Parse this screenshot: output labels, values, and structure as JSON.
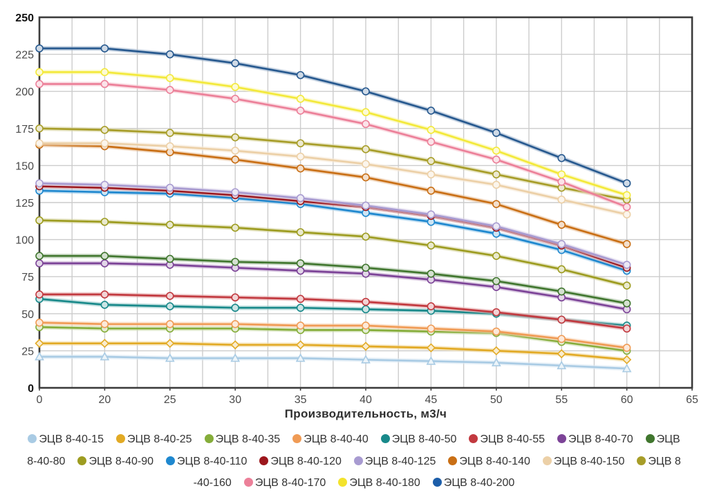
{
  "chart_data": {
    "type": "line",
    "x": [
      0,
      20,
      25,
      30,
      35,
      40,
      45,
      50,
      55,
      60
    ],
    "x_axis_ticks": [
      0,
      20,
      25,
      30,
      35,
      40,
      45,
      50,
      55,
      60,
      65
    ],
    "xlabel": "Производительность, м3/ч",
    "ylabel": "",
    "ylim": [
      0,
      250
    ],
    "y_tick_step": 25,
    "grid": true,
    "legend_position": "bottom",
    "series": [
      {
        "key": "15",
        "name": "ЭЦВ 8-40-15",
        "color": "#a9cbe4",
        "marker": "triangle",
        "values": [
          21,
          21,
          20,
          20,
          20,
          19,
          18,
          17,
          15,
          13
        ]
      },
      {
        "key": "25",
        "name": "ЭЦВ 8-40-25",
        "color": "#e2aa25",
        "marker": "diamond",
        "values": [
          30,
          30,
          30,
          29,
          29,
          28,
          27,
          25,
          23,
          19
        ]
      },
      {
        "key": "35",
        "name": "ЭЦВ 8-40-35",
        "color": "#85ad3a",
        "marker": "circle",
        "values": [
          41,
          40,
          40,
          40,
          39,
          39,
          38,
          37,
          31,
          25
        ]
      },
      {
        "key": "40",
        "name": "ЭЦВ 8-40-40",
        "color": "#f09b55",
        "marker": "circle",
        "values": [
          44,
          43,
          43,
          43,
          42,
          42,
          40,
          38,
          33,
          27
        ]
      },
      {
        "key": "50",
        "name": "ЭЦВ 8-40-50",
        "color": "#18898a",
        "marker": "circle",
        "values": [
          60,
          56,
          55,
          54,
          54,
          53,
          52,
          50,
          46,
          42
        ]
      },
      {
        "key": "55",
        "name": "ЭЦВ 8-40-55",
        "color": "#c2393f",
        "marker": "circle",
        "values": [
          63,
          63,
          62,
          61,
          60,
          58,
          55,
          51,
          46,
          40
        ]
      },
      {
        "key": "70",
        "name": "ЭЦВ 8-40-70",
        "color": "#7c4397",
        "marker": "circle",
        "values": [
          84,
          84,
          83,
          81,
          79,
          77,
          73,
          68,
          61,
          53
        ]
      },
      {
        "key": "80",
        "name": "ЭЦВ 8-40-80",
        "color": "#40762e",
        "marker": "circle",
        "values": [
          89,
          89,
          87,
          85,
          84,
          81,
          77,
          72,
          65,
          57
        ]
      },
      {
        "key": "90",
        "name": "ЭЦВ 8-40-90",
        "color": "#9d9c20",
        "marker": "circle",
        "values": [
          113,
          112,
          110,
          108,
          105,
          102,
          96,
          89,
          80,
          69
        ]
      },
      {
        "key": "110",
        "name": "ЭЦВ 8-40-110",
        "color": "#1f88cf",
        "marker": "circle",
        "values": [
          133,
          132,
          131,
          128,
          124,
          118,
          112,
          104,
          93,
          79
        ]
      },
      {
        "key": "120",
        "name": "ЭЦВ 8-40-120",
        "color": "#9c161c",
        "marker": "circle",
        "values": [
          136,
          135,
          133,
          130,
          126,
          122,
          116,
          108,
          96,
          81
        ]
      },
      {
        "key": "125",
        "name": "ЭЦВ 8-40-125",
        "color": "#a89bd1",
        "marker": "circle",
        "values": [
          138,
          137,
          135,
          132,
          128,
          123,
          117,
          109,
          97,
          83
        ]
      },
      {
        "key": "140",
        "name": "ЭЦВ 8-40-140",
        "color": "#c96f15",
        "marker": "circle",
        "values": [
          164,
          163,
          159,
          154,
          148,
          142,
          133,
          124,
          110,
          97
        ]
      },
      {
        "key": "150",
        "name": "ЭЦВ 8-40-150",
        "color": "#ecd0a7",
        "marker": "circle",
        "values": [
          165,
          165,
          163,
          160,
          156,
          151,
          144,
          137,
          127,
          117
        ]
      },
      {
        "key": "160",
        "name": "ЭЦВ 8-40-160",
        "color": "#a79d28",
        "marker": "circle",
        "values": [
          175,
          174,
          172,
          169,
          165,
          161,
          153,
          144,
          135,
          127
        ]
      },
      {
        "key": "170",
        "name": "ЭЦВ 8-40-170",
        "color": "#ec8099",
        "marker": "circle",
        "values": [
          205,
          205,
          201,
          195,
          187,
          178,
          166,
          154,
          139,
          122
        ]
      },
      {
        "key": "180",
        "name": "ЭЦВ 8-40-180",
        "color": "#f3e93a",
        "marker": "circle",
        "values": [
          213,
          213,
          209,
          203,
          195,
          186,
          174,
          160,
          144,
          130
        ]
      },
      {
        "key": "200",
        "name": "ЭЦВ 8-40-200",
        "color": "#27598f",
        "marker": "circle",
        "values": [
          229,
          229,
          225,
          219,
          211,
          200,
          187,
          172,
          155,
          138
        ]
      }
    ]
  },
  "legend": {
    "rows": [
      [
        {
          "key": "15",
          "swatch": "#a9cbe4",
          "label": "ЭЦВ 8-40-15"
        },
        {
          "key": "25",
          "swatch": "#e2aa25",
          "label": "ЭЦВ 8-40-25"
        },
        {
          "key": "35",
          "swatch": "#85ad3a",
          "label": "ЭЦВ 8-40-35"
        },
        {
          "key": "40",
          "swatch": "#f09b55",
          "label": "ЭЦВ 8-40-40"
        },
        {
          "key": "50",
          "swatch": "#18898a",
          "label": "ЭЦВ 8-40-50"
        },
        {
          "key": "55",
          "swatch": "#c2393f",
          "label": "ЭЦВ 8-40-55"
        },
        {
          "key": "70",
          "swatch": "#7c4397",
          "label": "ЭЦВ 8-40-70"
        },
        {
          "key": "80",
          "swatch": "#40762e",
          "label": "ЭЦВ"
        }
      ],
      [
        {
          "key": "80b",
          "swatch": null,
          "label": "8-40-80"
        },
        {
          "key": "90",
          "swatch": "#9d9c20",
          "label": "ЭЦВ 8-40-90"
        },
        {
          "key": "110",
          "swatch": "#1f88cf",
          "label": "ЭЦВ 8-40-110"
        },
        {
          "key": "120",
          "swatch": "#9c161c",
          "label": "ЭЦВ 8-40-120"
        },
        {
          "key": "125",
          "swatch": "#a89bd1",
          "label": "ЭЦВ 8-40-125"
        },
        {
          "key": "140",
          "swatch": "#c96f15",
          "label": "ЭЦВ 8-40-140"
        },
        {
          "key": "150",
          "swatch": "#ecd0a7",
          "label": "ЭЦВ 8-40-150"
        },
        {
          "key": "160",
          "swatch": "#a79d28",
          "label": "ЭЦВ 8"
        }
      ],
      [
        {
          "key": "160b",
          "swatch": null,
          "label": "-40-160"
        },
        {
          "key": "170",
          "swatch": "#ec8099",
          "label": "ЭЦВ 8-40-170"
        },
        {
          "key": "180",
          "swatch": "#f3e32c",
          "label": "ЭЦВ 8-40-180"
        },
        {
          "key": "200",
          "swatch": "#1c5ea9",
          "label": "ЭЦВ 8-40-200"
        }
      ]
    ]
  },
  "style": {
    "border_color": "#3b3b3b",
    "grid_color": "#cccccc",
    "background": "#ffffff"
  }
}
